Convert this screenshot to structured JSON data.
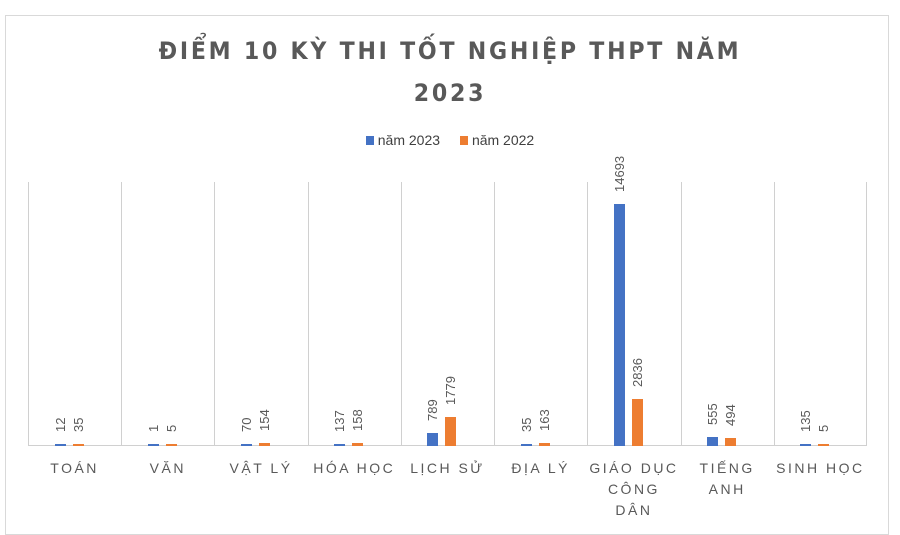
{
  "chart_data": {
    "type": "bar",
    "title": "ĐIỂM 10 KỲ THI TỐT NGHIỆP THPT NĂM 2023",
    "title_lines": [
      "ĐIỂM 10 KỲ THI TỐT NGHIỆP THPT NĂM",
      "2023"
    ],
    "categories": [
      "TOÁN",
      "VĂN",
      "VẬT LÝ",
      "HÓA HỌC",
      "LỊCH SỬ",
      "ĐỊA LÝ",
      "GIÁO DỤC CÔNG DÂN",
      "TIẾNG ANH",
      "SINH HỌC"
    ],
    "series": [
      {
        "name": "năm 2023",
        "color": "#4472c4",
        "values": [
          12,
          1,
          70,
          137,
          789,
          35,
          14693,
          555,
          135
        ]
      },
      {
        "name": "năm 2022",
        "color": "#ed7d31",
        "values": [
          35,
          5,
          154,
          158,
          1779,
          163,
          2836,
          494,
          5
        ]
      }
    ],
    "xlabel": "",
    "ylabel": "",
    "ylim": [
      0,
      16000
    ],
    "grid": "vertical category separators",
    "legend_position": "top",
    "data_labels": "rotated vertical above bars"
  }
}
